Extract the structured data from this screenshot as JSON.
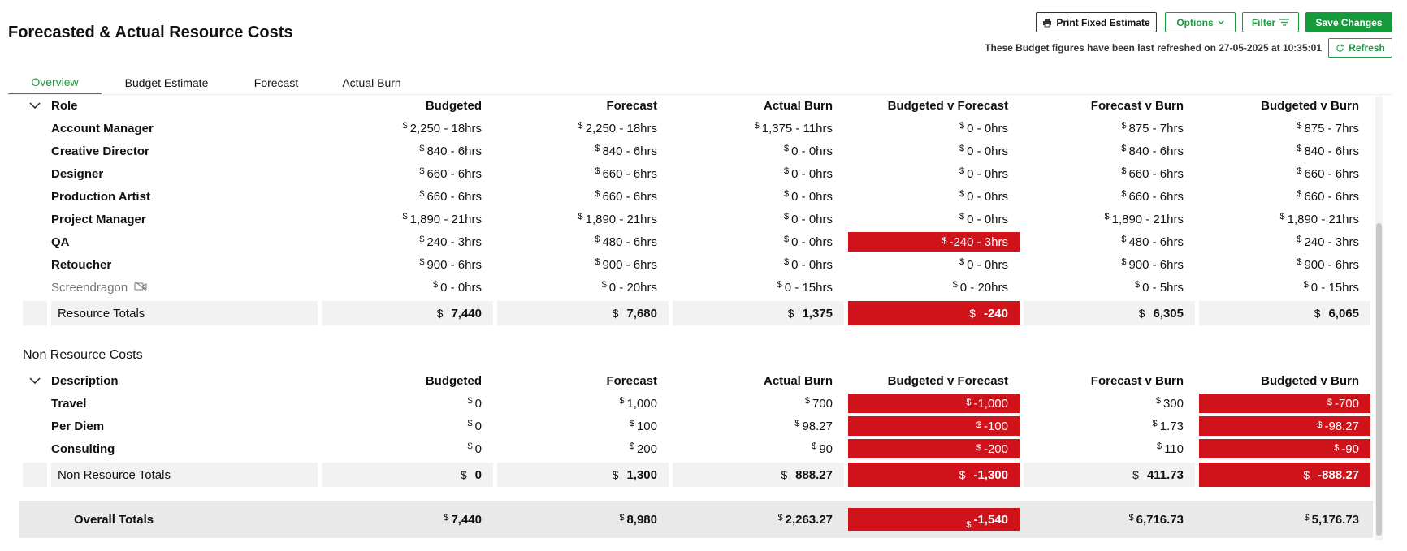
{
  "header": {
    "title": "Forecasted & Actual Resource Costs",
    "buttons": {
      "print": "Print Fixed Estimate",
      "options": "Options",
      "filter": "Filter",
      "save": "Save Changes"
    },
    "refresh_note": "These Budget figures have been last refreshed on 27-05-2025 at 10:35:01",
    "refresh_button": "Refresh"
  },
  "tabs": [
    "Overview",
    "Budget Estimate",
    "Forecast",
    "Actual Burn"
  ],
  "active_tab": 0,
  "currency": "$",
  "resource_costs": {
    "group_label": "Role",
    "columns": [
      "Budgeted",
      "Forecast",
      "Actual Burn",
      "Budgeted v Forecast",
      "Forecast v Burn",
      "Budgeted v Burn"
    ],
    "rows": [
      {
        "label": "Account Manager",
        "cells": [
          "2,250 - 18hrs",
          "2,250 - 18hrs",
          "1,375 - 11hrs",
          "0 - 0hrs",
          "875 - 7hrs",
          "875 - 7hrs"
        ]
      },
      {
        "label": "Creative Director",
        "cells": [
          "840 - 6hrs",
          "840 - 6hrs",
          "0 - 0hrs",
          "0 - 0hrs",
          "840 - 6hrs",
          "840 - 6hrs"
        ]
      },
      {
        "label": "Designer",
        "cells": [
          "660 - 6hrs",
          "660 - 6hrs",
          "0 - 0hrs",
          "0 - 0hrs",
          "660 - 6hrs",
          "660 - 6hrs"
        ]
      },
      {
        "label": "Production Artist",
        "cells": [
          "660 - 6hrs",
          "660 - 6hrs",
          "0 - 0hrs",
          "0 - 0hrs",
          "660 - 6hrs",
          "660 - 6hrs"
        ]
      },
      {
        "label": "Project Manager",
        "cells": [
          "1,890 - 21hrs",
          "1,890 - 21hrs",
          "0 - 0hrs",
          "0 - 0hrs",
          "1,890 - 21hrs",
          "1,890 - 21hrs"
        ]
      },
      {
        "label": "QA",
        "cells": [
          "240 - 3hrs",
          "480 - 6hrs",
          "0 - 0hrs",
          "-240 - 3hrs",
          "480 - 6hrs",
          "240 - 3hrs"
        ]
      },
      {
        "label": "Retoucher",
        "cells": [
          "900 - 6hrs",
          "900 - 6hrs",
          "0 - 0hrs",
          "0 - 0hrs",
          "900 - 6hrs",
          "900 - 6hrs"
        ]
      },
      {
        "label": "Screendragon",
        "inactive": true,
        "cells": [
          "0 - 0hrs",
          "0 - 20hrs",
          "0 - 15hrs",
          "0 - 20hrs",
          "0 - 5hrs",
          "0 - 15hrs"
        ]
      }
    ],
    "totals": {
      "label": "Resource Totals",
      "cells": [
        "7,440",
        "7,680",
        "1,375",
        "-240",
        "6,305",
        "6,065"
      ]
    }
  },
  "non_resource_costs": {
    "title": "Non Resource Costs",
    "group_label": "Description",
    "columns": [
      "Budgeted",
      "Forecast",
      "Actual Burn",
      "Budgeted v Forecast",
      "Forecast v Burn",
      "Budgeted v Burn"
    ],
    "rows": [
      {
        "label": "Travel",
        "cells": [
          "0",
          "1,000",
          "700",
          "-1,000",
          "300",
          "-700"
        ]
      },
      {
        "label": "Per Diem",
        "cells": [
          "0",
          "100",
          "98.27",
          "-100",
          "1.73",
          "-98.27"
        ]
      },
      {
        "label": "Consulting",
        "cells": [
          "0",
          "200",
          "90",
          "-200",
          "110",
          "-90"
        ]
      }
    ],
    "totals": {
      "label": "Non Resource Totals",
      "cells": [
        "0",
        "1,300",
        "888.27",
        "-1,300",
        "411.73",
        "-888.27"
      ]
    }
  },
  "overall_totals": {
    "label": "Overall Totals",
    "cells": [
      "7,440",
      "8,980",
      "2,263.27",
      "-1,540",
      "6,716.73",
      "5,176.73"
    ]
  }
}
